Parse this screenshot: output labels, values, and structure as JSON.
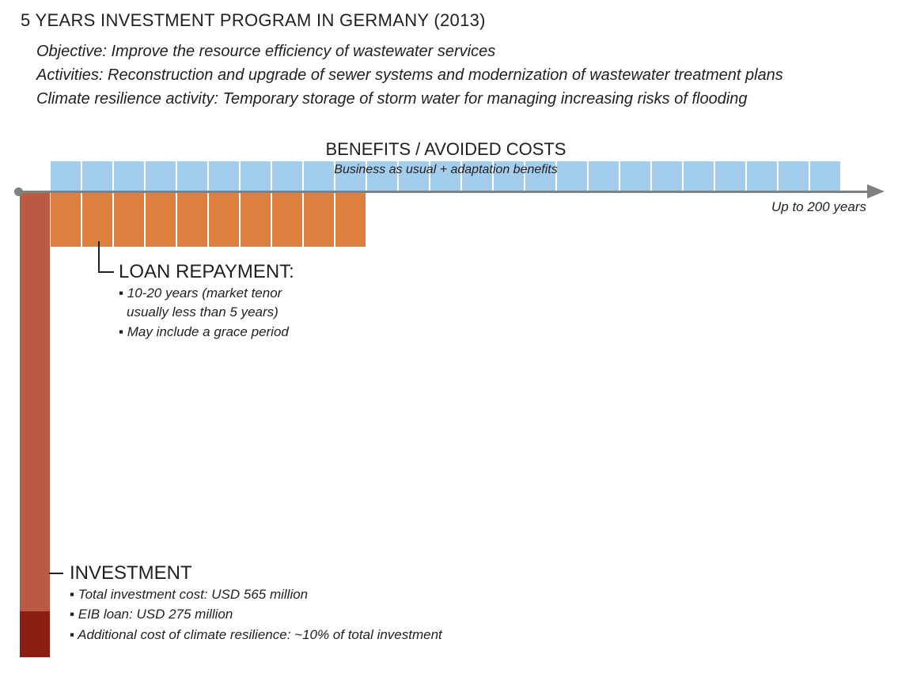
{
  "title": "5 YEARS INVESTMENT PROGRAM IN GERMANY (2013)",
  "sublines": [
    "Objective: Improve the resource efficiency of wastewater services",
    "Activities: Reconstruction and upgrade of sewer systems and modernization of wastewater treatment plans",
    "Climate resilience activity: Temporary storage of storm water for managing increasing risks of flooding"
  ],
  "benefits": {
    "heading": "BENEFITS / AVOIDED COSTS",
    "subheading": "Business as usual + adaptation benefits",
    "cell_count": 25
  },
  "axis": {
    "label": "Up to 200 years"
  },
  "loan_repayment": {
    "heading": "LOAN REPAYMENT:",
    "cell_count": 10,
    "bullets": [
      "▪ 10-20 years (market tenor",
      "usually less than 5 years)",
      "▪ May include a grace period"
    ]
  },
  "investment": {
    "heading": "INVESTMENT",
    "bullets": [
      "▪ Total investment cost: USD 565 million",
      "▪ EIB loan: USD 275 million",
      "▪ Additional cost of climate resilience: ~10% of total investment"
    ]
  },
  "colors": {
    "benefit": "#a3cdec",
    "repayment": "#dc813f",
    "investment": "#b95a42",
    "climate_resilience_cost": "#8b1d13",
    "axis": "#808080"
  }
}
